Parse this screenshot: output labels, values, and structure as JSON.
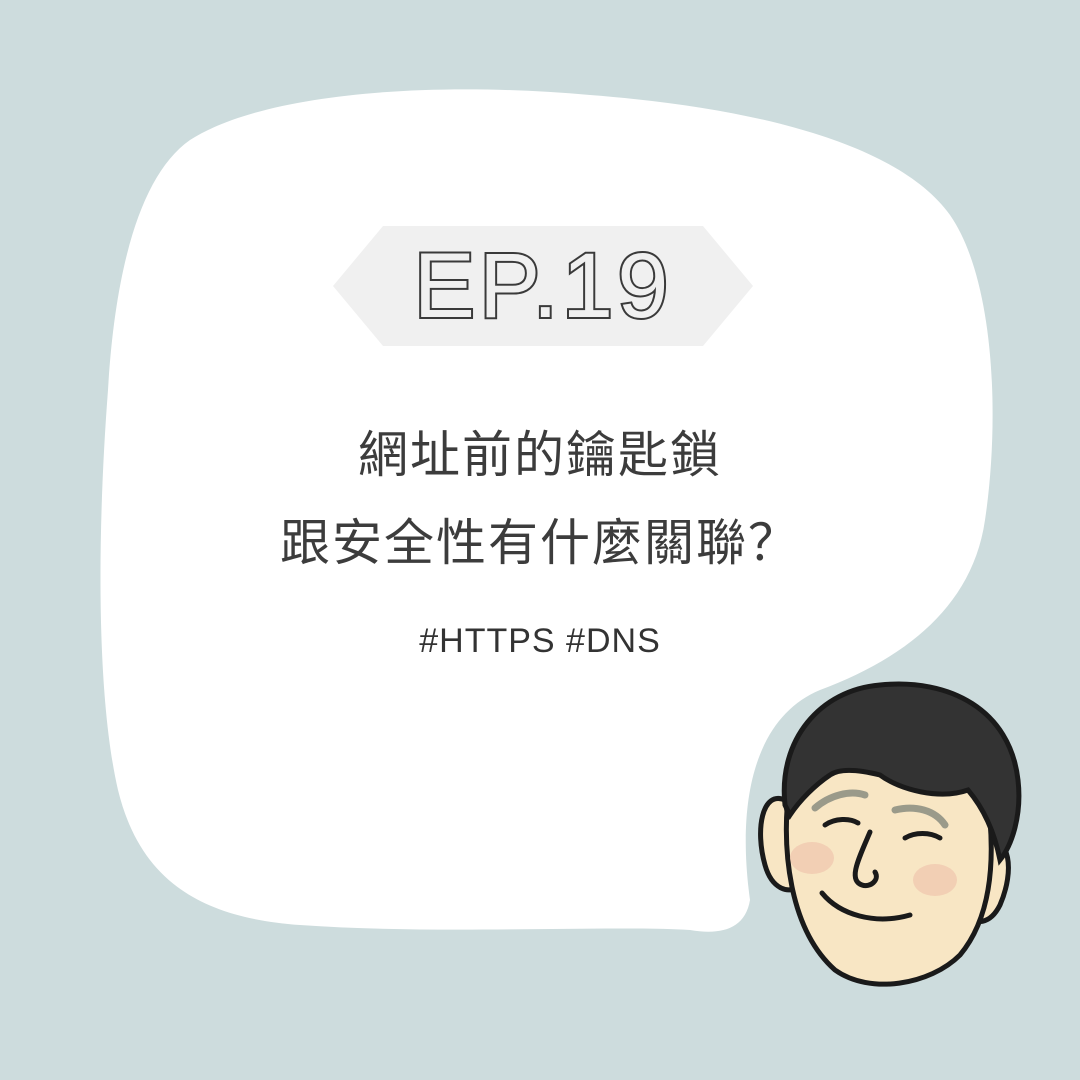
{
  "episode": {
    "label": "EP.19"
  },
  "title": {
    "line1": "網址前的鑰匙鎖",
    "line2": "跟安全性有什麼關聯？"
  },
  "tags": "#HTTPS #DNS",
  "colors": {
    "background": "#cddcdd",
    "bubble": "#ffffff",
    "badge": "#f0f0f0",
    "text": "#3c3c3c",
    "hair": "#333333",
    "skin": "#f8e6c4"
  },
  "illustration": {
    "character": "smiling-man-avatar"
  }
}
